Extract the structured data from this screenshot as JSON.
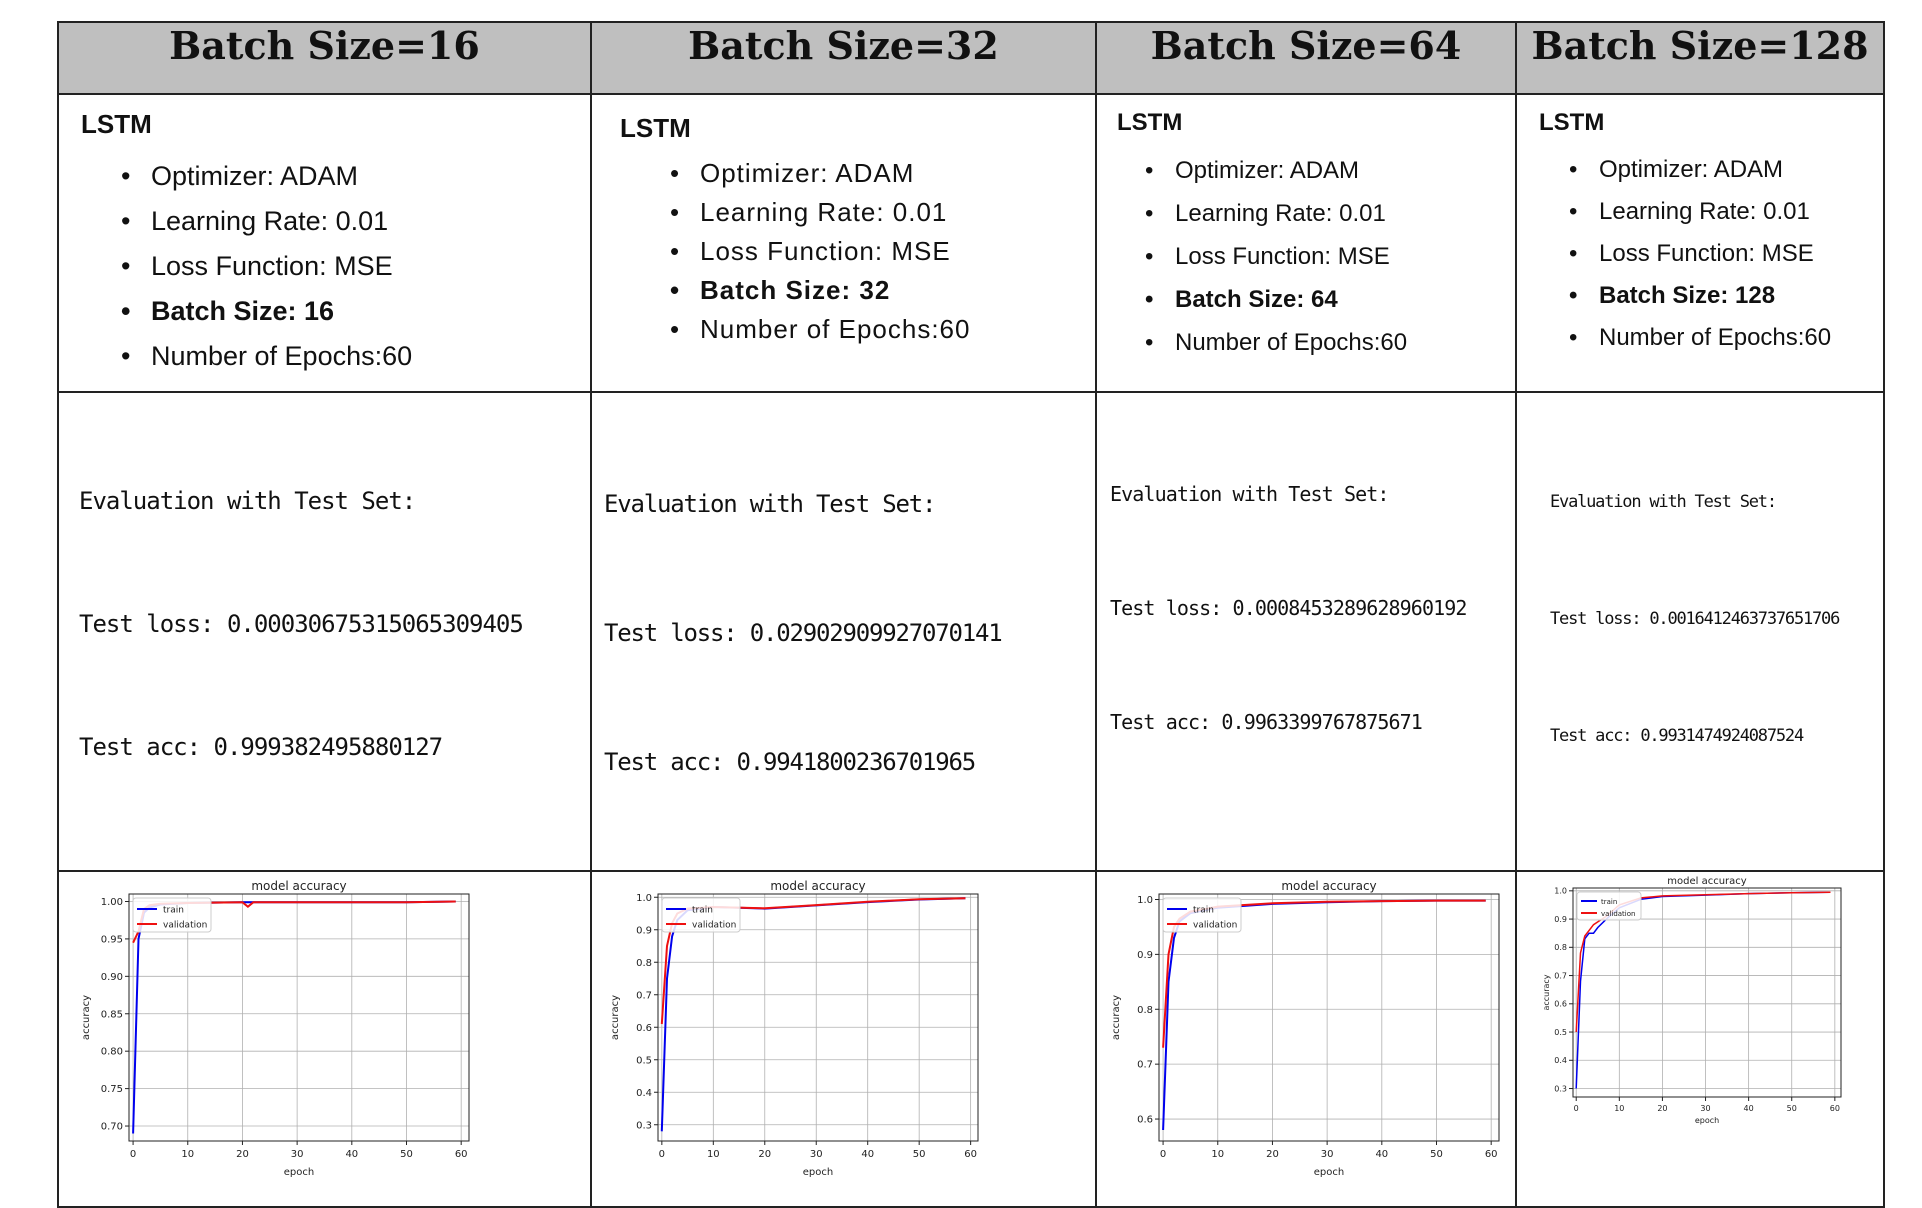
{
  "columns": [
    {
      "header": "Batch Size=16",
      "model": "LSTM",
      "params": [
        "Optimizer: ADAM",
        "Learning Rate: 0.01",
        "Loss Function: MSE",
        "Batch Size: 16",
        "Number of Epochs:60"
      ],
      "eval": [
        "Evaluation with Test Set:",
        "Test loss: 0.00030675315065309405",
        "Test acc: 0.999382495880127"
      ]
    },
    {
      "header": "Batch Size=32",
      "model": "LSTM",
      "params": [
        "Optimizer: ADAM",
        "Learning Rate: 0.01",
        "Loss Function: MSE",
        "Batch Size: 32",
        "Number of Epochs:60"
      ],
      "eval": [
        "Evaluation with Test Set:",
        "Test loss: 0.02902909927070141",
        "Test acc: 0.9941800236701965"
      ]
    },
    {
      "header": "Batch Size=64",
      "model": "LSTM",
      "params": [
        "Optimizer: ADAM",
        "Learning Rate: 0.01",
        "Loss Function: MSE",
        "Batch Size: 64",
        "Number of Epochs:60"
      ],
      "eval": [
        "Evaluation with Test Set:",
        "Test loss: 0.0008453289628960192",
        "Test acc: 0.9963399767875671"
      ]
    },
    {
      "header": "Batch Size=128",
      "model": "LSTM",
      "params": [
        "Optimizer: ADAM",
        "Learning Rate: 0.01",
        "Loss Function: MSE",
        "Batch Size: 128",
        "Number of Epochs:60"
      ],
      "eval": [
        "Evaluation with Test Set:",
        "Test loss: 0.0016412463737651706",
        "Test acc: 0.9931474924087524"
      ]
    }
  ],
  "colors": {
    "header_bg": "#bfbfbf",
    "train": "#0000ee",
    "validation": "#ee1111",
    "grid": "#b0b0b0"
  },
  "chart_data": [
    {
      "type": "line",
      "title": "model accuracy",
      "xlabel": "epoch",
      "ylabel": "accuracy",
      "xlim": [
        0,
        60
      ],
      "ylim": [
        0.68,
        1.01
      ],
      "grid": true,
      "legend": "top-left",
      "yticks": [
        "0.70",
        "0.75",
        "0.80",
        "0.85",
        "0.90",
        "0.95",
        "1.00"
      ],
      "xticks": [
        "0",
        "10",
        "20",
        "30",
        "40",
        "50",
        "60"
      ],
      "series": [
        {
          "name": "train",
          "x": [
            0,
            1,
            2,
            3,
            5,
            10,
            20,
            21,
            22,
            30,
            40,
            50,
            59
          ],
          "y": [
            0.69,
            0.95,
            0.985,
            0.992,
            0.996,
            0.998,
            0.999,
            0.999,
            0.999,
            0.999,
            0.999,
            0.999,
            1.0
          ]
        },
        {
          "name": "validation",
          "x": [
            0,
            1,
            2,
            3,
            5,
            10,
            20,
            21,
            22,
            30,
            40,
            50,
            59
          ],
          "y": [
            0.945,
            0.96,
            0.99,
            0.995,
            0.997,
            0.998,
            0.999,
            0.993,
            0.999,
            0.999,
            0.999,
            0.999,
            1.0
          ]
        }
      ]
    },
    {
      "type": "line",
      "title": "model accuracy",
      "xlabel": "epoch",
      "ylabel": "accuracy",
      "xlim": [
        0,
        60
      ],
      "ylim": [
        0.25,
        1.01
      ],
      "grid": true,
      "legend": "top-left",
      "yticks": [
        "0.3",
        "0.4",
        "0.5",
        "0.6",
        "0.7",
        "0.8",
        "0.9",
        "1.0"
      ],
      "xticks": [
        "0",
        "10",
        "20",
        "30",
        "40",
        "50",
        "60"
      ],
      "series": [
        {
          "name": "train",
          "x": [
            0,
            1,
            2,
            3,
            5,
            10,
            20,
            30,
            40,
            50,
            59
          ],
          "y": [
            0.28,
            0.75,
            0.88,
            0.93,
            0.96,
            0.97,
            0.965,
            0.975,
            0.985,
            0.993,
            0.997
          ]
        },
        {
          "name": "validation",
          "x": [
            0,
            1,
            2,
            3,
            5,
            10,
            20,
            30,
            40,
            50,
            59
          ],
          "y": [
            0.61,
            0.85,
            0.92,
            0.95,
            0.965,
            0.97,
            0.966,
            0.976,
            0.986,
            0.994,
            0.997
          ]
        }
      ]
    },
    {
      "type": "line",
      "title": "model accuracy",
      "xlabel": "epoch",
      "ylabel": "accuracy",
      "xlim": [
        0,
        60
      ],
      "ylim": [
        0.56,
        1.01
      ],
      "grid": true,
      "legend": "top-left",
      "yticks": [
        "0.6",
        "0.7",
        "0.8",
        "0.9",
        "1.0"
      ],
      "xticks": [
        "0",
        "10",
        "20",
        "30",
        "40",
        "50",
        "60"
      ],
      "series": [
        {
          "name": "train",
          "x": [
            0,
            1,
            2,
            3,
            5,
            10,
            20,
            30,
            40,
            50,
            59
          ],
          "y": [
            0.58,
            0.85,
            0.93,
            0.96,
            0.975,
            0.985,
            0.992,
            0.995,
            0.997,
            0.998,
            0.998
          ]
        },
        {
          "name": "validation",
          "x": [
            0,
            1,
            2,
            3,
            5,
            10,
            20,
            30,
            40,
            50,
            59
          ],
          "y": [
            0.73,
            0.9,
            0.95,
            0.965,
            0.978,
            0.987,
            0.993,
            0.996,
            0.997,
            0.998,
            0.998
          ]
        }
      ]
    },
    {
      "type": "line",
      "title": "model accuracy",
      "xlabel": "epoch",
      "ylabel": "accuracy",
      "xlim": [
        0,
        60
      ],
      "ylim": [
        0.27,
        1.01
      ],
      "grid": true,
      "legend": "top-left",
      "yticks": [
        "0.3",
        "0.4",
        "0.5",
        "0.6",
        "0.7",
        "0.8",
        "0.9",
        "1.0"
      ],
      "xticks": [
        "0",
        "10",
        "20",
        "30",
        "40",
        "50",
        "60"
      ],
      "series": [
        {
          "name": "train",
          "x": [
            0,
            1,
            2,
            3,
            4,
            5,
            7,
            10,
            15,
            20,
            30,
            40,
            50,
            59
          ],
          "y": [
            0.3,
            0.68,
            0.83,
            0.85,
            0.85,
            0.87,
            0.9,
            0.94,
            0.97,
            0.98,
            0.985,
            0.99,
            0.993,
            0.995
          ]
        },
        {
          "name": "validation",
          "x": [
            0,
            1,
            2,
            3,
            4,
            5,
            7,
            10,
            15,
            20,
            30,
            40,
            50,
            59
          ],
          "y": [
            0.5,
            0.78,
            0.84,
            0.86,
            0.88,
            0.89,
            0.91,
            0.95,
            0.975,
            0.982,
            0.986,
            0.99,
            0.993,
            0.995
          ]
        }
      ]
    }
  ]
}
